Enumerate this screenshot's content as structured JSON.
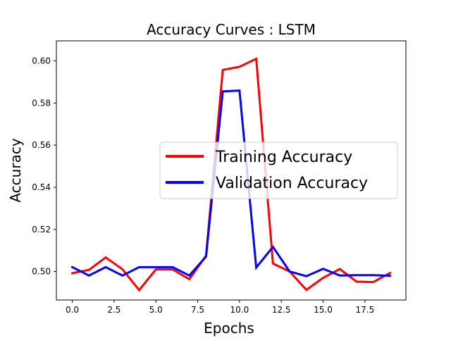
{
  "chart_data": {
    "type": "line",
    "title": "Accuracy Curves : LSTM",
    "xlabel": "Epochs",
    "ylabel": "Accuracy",
    "xlim": [
      -0.95,
      19.95
    ],
    "ylim": [
      0.4865,
      0.6095
    ],
    "xticks": [
      0.0,
      2.5,
      5.0,
      7.5,
      10.0,
      12.5,
      15.0,
      17.5
    ],
    "xtick_labels": [
      "0.0",
      "2.5",
      "5.0",
      "7.5",
      "10.0",
      "12.5",
      "15.0",
      "17.5"
    ],
    "yticks": [
      0.5,
      0.52,
      0.54,
      0.56,
      0.58,
      0.6
    ],
    "ytick_labels": [
      "0.50",
      "0.52",
      "0.54",
      "0.56",
      "0.58",
      "0.60"
    ],
    "grid": false,
    "legend_position": "center-right",
    "x": [
      0,
      1,
      2,
      3,
      4,
      5,
      6,
      7,
      8,
      9,
      10,
      11,
      12,
      13,
      14,
      15,
      16,
      17,
      18,
      19
    ],
    "series": [
      {
        "name": "Training Accuracy",
        "color": "#ff0000",
        "values": [
          0.4992,
          0.5008,
          0.5067,
          0.5011,
          0.4912,
          0.501,
          0.501,
          0.4964,
          0.5075,
          0.5957,
          0.5972,
          0.601,
          0.5038,
          0.5,
          0.4913,
          0.497,
          0.5012,
          0.4952,
          0.495,
          0.4993
        ]
      },
      {
        "name": "Validation Accuracy",
        "color": "#0000ff",
        "values": [
          0.5021,
          0.4981,
          0.5021,
          0.4981,
          0.5021,
          0.5021,
          0.5021,
          0.4981,
          0.5071,
          0.5855,
          0.5859,
          0.5019,
          0.5117,
          0.5,
          0.4978,
          0.5013,
          0.4981,
          0.4983,
          0.4983,
          0.498
        ]
      }
    ]
  }
}
